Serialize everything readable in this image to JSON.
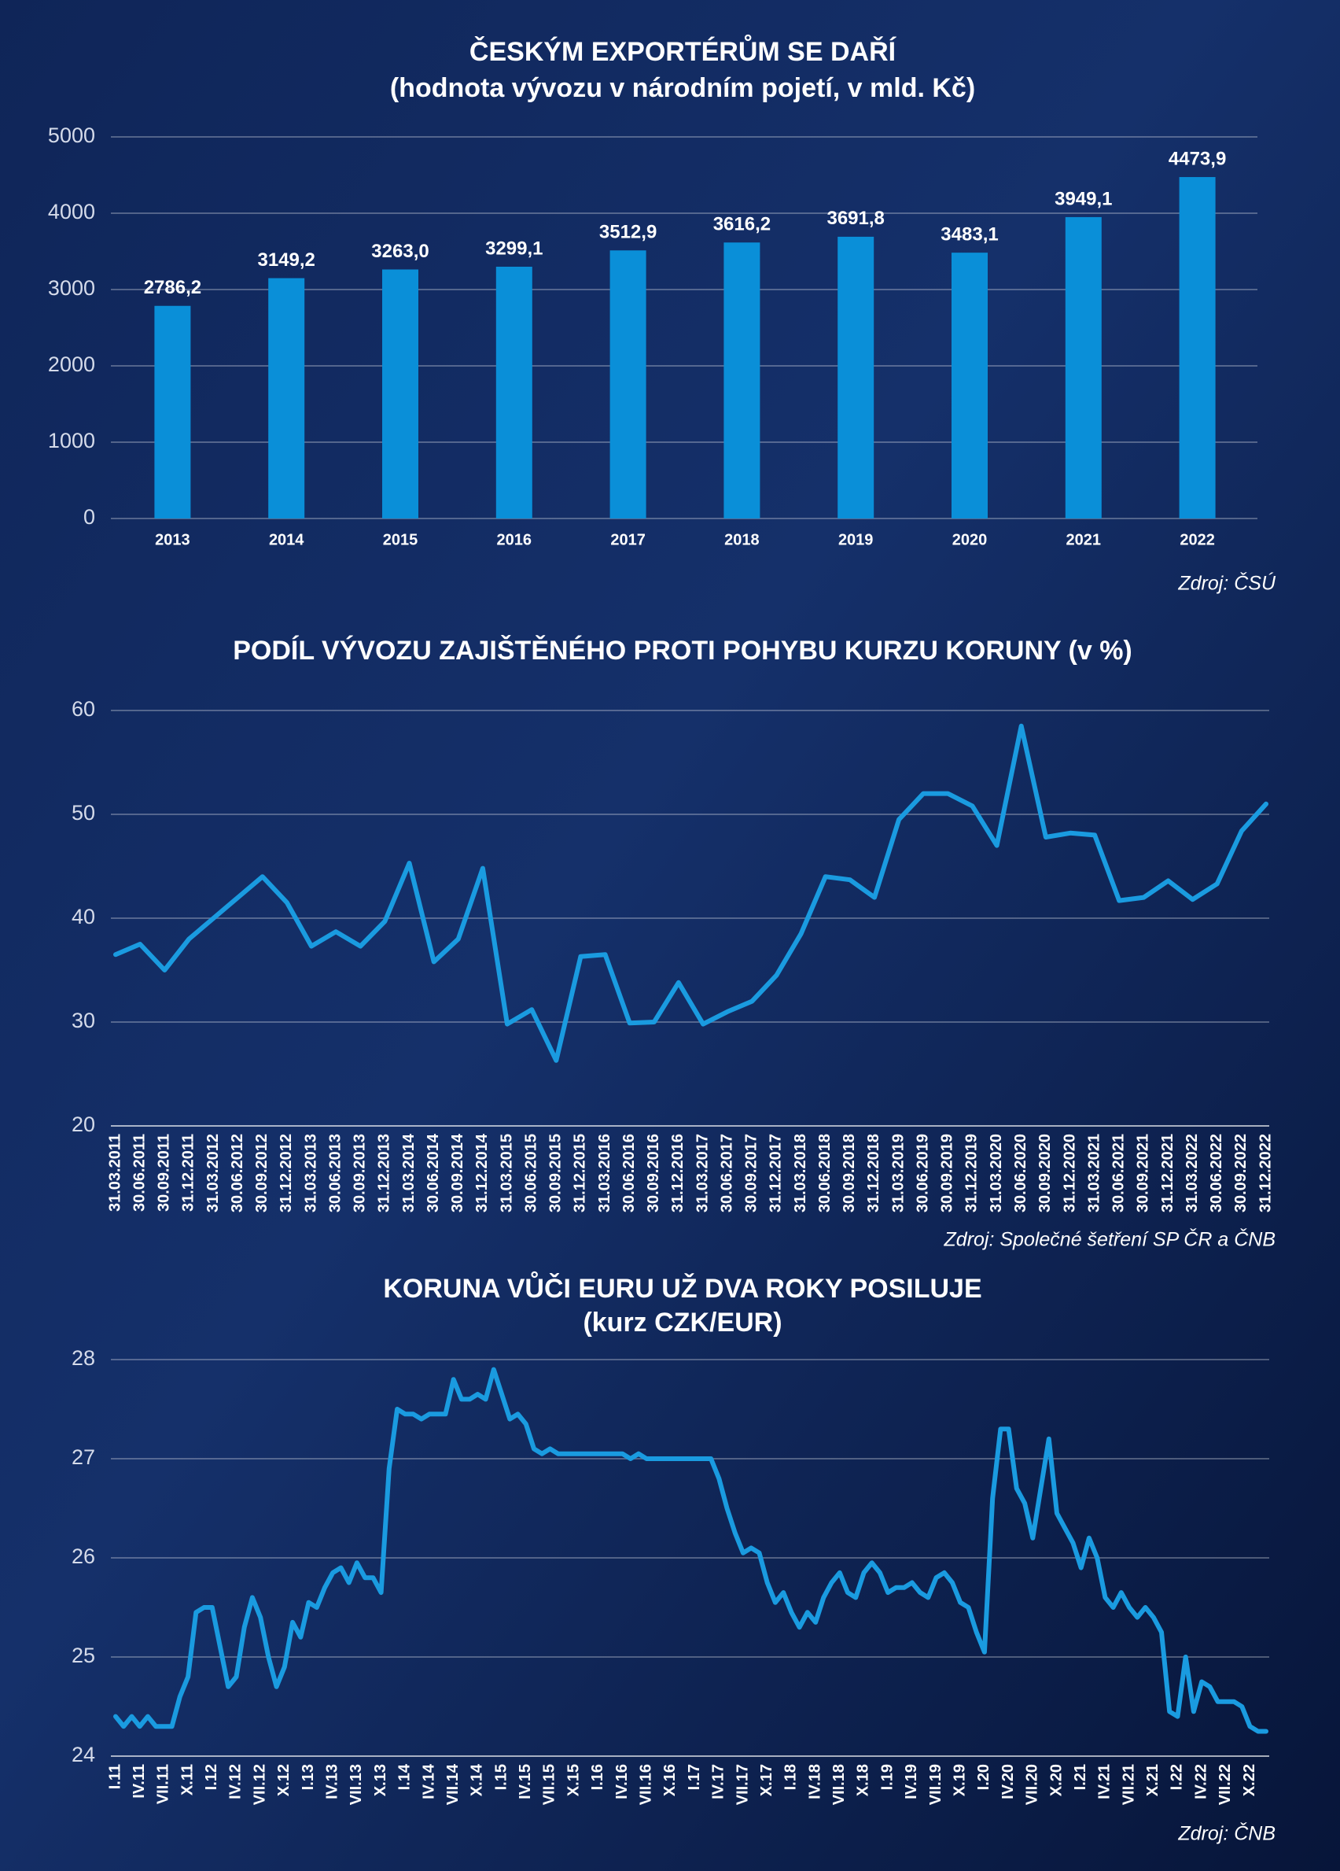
{
  "chart_data": [
    {
      "type": "bar",
      "title": "ČESKÝM EXPORTÉRŮM SE DAŘÍ",
      "subtitle": "(hodnota vývozu v národním pojetí, v mld. Kč)",
      "source": "Zdroj: ČSÚ",
      "categories": [
        "2013",
        "2014",
        "2015",
        "2016",
        "2017",
        "2018",
        "2019",
        "2020",
        "2021",
        "2022"
      ],
      "values": [
        2786.2,
        3149.2,
        3263.0,
        3299.1,
        3512.9,
        3616.2,
        3691.8,
        3483.1,
        3949.1,
        4473.9
      ],
      "value_labels": [
        "2786,2",
        "3149,2",
        "3263,0",
        "3299,1",
        "3512,9",
        "3616,2",
        "3691,8",
        "3483,1",
        "3949,1",
        "4473,9"
      ],
      "color": "#0a8fd8",
      "ylim": [
        0,
        5000
      ],
      "yticks": [
        0,
        1000,
        2000,
        3000,
        4000,
        5000
      ],
      "grid": true
    },
    {
      "type": "line",
      "title": "PODÍL VÝVOZU ZAJIŠTĚNÉHO PROTI POHYBU KURZU KORUNY (v %)",
      "source": "Zdroj: Společné šetření SP ČR a ČNB",
      "categories": [
        "31.03.2011",
        "30.06.2011",
        "30.09.2011",
        "31.12.2011",
        "31.03.2012",
        "30.06.2012",
        "30.09.2012",
        "31.12.2012",
        "31.03.2013",
        "30.06.2013",
        "30.09.2013",
        "31.12.2013",
        "31.03.2014",
        "30.06.2014",
        "30.09.2014",
        "31.12.2014",
        "31.03.2015",
        "30.06.2015",
        "30.09.2015",
        "31.12.2015",
        "31.03.2016",
        "30.06.2016",
        "30.09.2016",
        "31.12.2016",
        "31.03.2017",
        "30.06.2017",
        "30.09.2017",
        "31.12.2017",
        "31.03.2018",
        "30.06.2018",
        "30.09.2018",
        "31.12.2018",
        "31.03.2019",
        "30.06.2019",
        "30.09.2019",
        "31.12.2019",
        "31.03.2020",
        "30.06.2020",
        "30.09.2020",
        "31.12.2020",
        "31.03.2021",
        "30.06.2021",
        "30.09.2021",
        "31.12.2021",
        "31.03.2022",
        "30.06.2022",
        "30.09.2022",
        "31.12.2022"
      ],
      "values": [
        36.5,
        37.5,
        35.0,
        38.0,
        40.0,
        42.0,
        44.0,
        41.5,
        37.3,
        38.7,
        37.3,
        39.7,
        45.3,
        35.8,
        38.0,
        44.8,
        29.8,
        31.2,
        26.3,
        36.3,
        36.5,
        29.9,
        30.0,
        33.8,
        29.8,
        31.0,
        32.0,
        34.5,
        38.5,
        44.0,
        43.7,
        42.0,
        49.5,
        52.0,
        52.0,
        50.8,
        47.0,
        58.5,
        47.8,
        48.2,
        48.0,
        41.7,
        42.0,
        43.6,
        41.8,
        43.3,
        48.4,
        51.0
      ],
      "color": "#1a9be0",
      "ylim": [
        20,
        60
      ],
      "yticks": [
        20,
        30,
        40,
        50,
        60
      ],
      "grid": true
    },
    {
      "type": "line",
      "title": "KORUNA VŮČI EURU UŽ DVA ROKY POSILUJE",
      "subtitle": "(kurz CZK/EUR)",
      "source": "Zdroj: ČNB",
      "categories": [
        "I.11",
        null,
        null,
        "IV.11",
        null,
        null,
        "VII.11",
        null,
        null,
        "X.11",
        null,
        null,
        "I.12",
        null,
        null,
        "IV.12",
        null,
        null,
        "VII.12",
        null,
        null,
        "X.12",
        null,
        null,
        "I.13",
        null,
        null,
        "IV.13",
        null,
        null,
        "VII.13",
        null,
        null,
        "X.13",
        null,
        null,
        "I.14",
        null,
        null,
        "IV.14",
        null,
        null,
        "VII.14",
        null,
        null,
        "X.14",
        null,
        null,
        "I.15",
        null,
        null,
        "IV.15",
        null,
        null,
        "VII.15",
        null,
        null,
        "X.15",
        null,
        null,
        "I.16",
        null,
        null,
        "IV.16",
        null,
        null,
        "VII.16",
        null,
        null,
        "X.16",
        null,
        null,
        "I.17",
        null,
        null,
        "IV.17",
        null,
        null,
        "VII.17",
        null,
        null,
        "X.17",
        null,
        null,
        "I.18",
        null,
        null,
        "IV.18",
        null,
        null,
        "VII.18",
        null,
        null,
        "X.18",
        null,
        null,
        "I.19",
        null,
        null,
        "IV.19",
        null,
        null,
        "VII.19",
        null,
        null,
        "X.19",
        null,
        null,
        "I.20",
        null,
        null,
        "IV.20",
        null,
        null,
        "VII.20",
        null,
        null,
        "X.20",
        null,
        null,
        "I.21",
        null,
        null,
        "IV.21",
        null,
        null,
        "VII.21",
        null,
        null,
        "X.21",
        null,
        null,
        "I.22",
        null,
        null,
        "IV.22",
        null,
        null,
        "VII.22",
        null,
        null,
        "X.22",
        null,
        null
      ],
      "values": [
        24.4,
        24.3,
        24.4,
        24.3,
        24.4,
        24.3,
        24.3,
        24.3,
        24.6,
        24.8,
        25.45,
        25.5,
        25.5,
        25.1,
        24.7,
        24.8,
        25.3,
        25.6,
        25.4,
        25.0,
        24.7,
        24.9,
        25.35,
        25.2,
        25.55,
        25.5,
        25.7,
        25.85,
        25.9,
        25.75,
        25.95,
        25.8,
        25.8,
        25.65,
        26.9,
        27.5,
        27.45,
        27.45,
        27.4,
        27.45,
        27.45,
        27.45,
        27.8,
        27.6,
        27.6,
        27.65,
        27.6,
        27.9,
        27.65,
        27.4,
        27.45,
        27.35,
        27.1,
        27.05,
        27.1,
        27.05,
        27.05,
        27.05,
        27.05,
        27.05,
        27.05,
        27.05,
        27.05,
        27.05,
        27.0,
        27.05,
        27.0,
        27.0,
        27.0,
        27.0,
        27.0,
        27.0,
        27.0,
        27.0,
        27.0,
        26.8,
        26.5,
        26.25,
        26.05,
        26.1,
        26.05,
        25.75,
        25.55,
        25.65,
        25.45,
        25.3,
        25.45,
        25.35,
        25.6,
        25.75,
        25.85,
        25.65,
        25.6,
        25.85,
        25.95,
        25.85,
        25.65,
        25.7,
        25.7,
        25.75,
        25.65,
        25.6,
        25.8,
        25.85,
        25.75,
        25.55,
        25.5,
        25.25,
        25.05,
        26.6,
        27.3,
        27.3,
        26.7,
        26.55,
        26.2,
        26.7,
        27.2,
        26.45,
        26.3,
        26.15,
        25.9,
        26.2,
        26.0,
        25.6,
        25.5,
        25.65,
        25.5,
        25.4,
        25.5,
        25.4,
        25.25,
        24.45,
        24.4,
        25.0,
        24.45,
        24.75,
        24.7,
        24.55,
        24.55,
        24.55,
        24.5,
        24.3,
        24.25,
        24.25
      ],
      "color": "#1a9be0",
      "ylim": [
        24,
        28
      ],
      "yticks": [
        24,
        25,
        26,
        27,
        28
      ],
      "grid": true
    }
  ]
}
